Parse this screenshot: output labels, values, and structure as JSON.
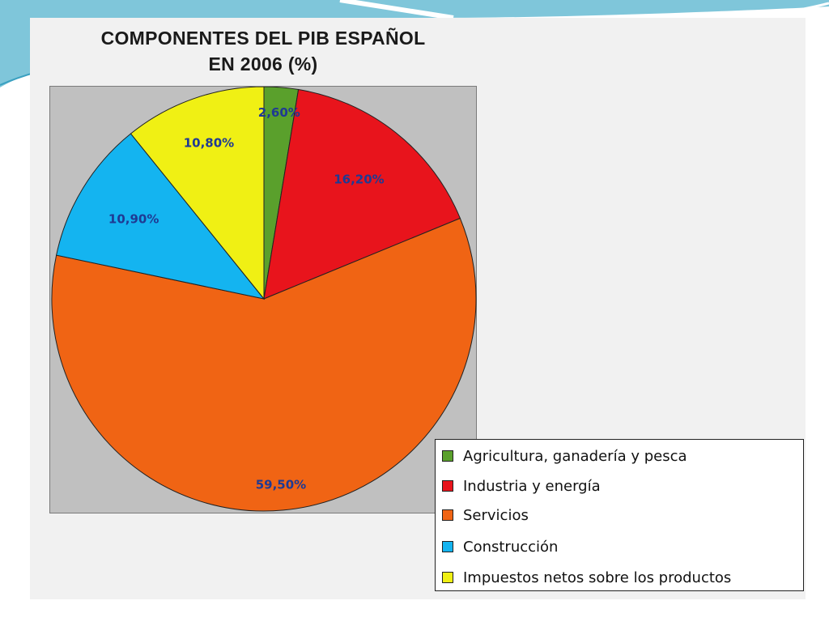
{
  "chart_data": {
    "type": "pie",
    "title": "COMPONENTES DEL PIB ESPAÑOL",
    "subtitle": "EN 2006 (%)",
    "categories": [
      "Agricultura, ganadería y pesca",
      "Industria y energía",
      "Servicios",
      "Construcción",
      "Impuestos netos sobre los productos"
    ],
    "values": [
      2.6,
      16.2,
      59.5,
      10.9,
      10.8
    ],
    "value_labels": [
      "2,60%",
      "16,20%",
      "59,50%",
      "10,90%",
      "10,80%"
    ],
    "colors": [
      "#5aa02c",
      "#e8141c",
      "#f06414",
      "#14b4f0",
      "#f0f014"
    ],
    "start": "12 o'clock",
    "direction": "clockwise",
    "legend_position": "bottom-right"
  }
}
